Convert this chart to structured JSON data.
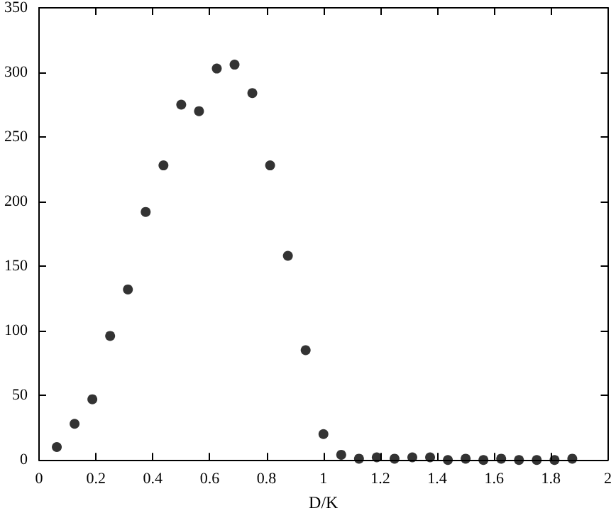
{
  "chart_data": {
    "type": "scatter",
    "xlabel": "D/K",
    "color": "#000000",
    "marker": "circle",
    "grid": false,
    "x": [
      0.0625,
      0.125,
      0.1875,
      0.25,
      0.3125,
      0.375,
      0.4375,
      0.5,
      0.5625,
      0.625,
      0.6875,
      0.75,
      0.8125,
      0.875,
      0.9375,
      1.0,
      1.0625,
      1.125,
      1.1875,
      1.25,
      1.3125,
      1.375,
      1.4375,
      1.5,
      1.5625,
      1.625,
      1.6875,
      1.75,
      1.8125,
      1.875
    ],
    "values": [
      10,
      28,
      47,
      96,
      132,
      192,
      228,
      275,
      270,
      303,
      306,
      284,
      228,
      158,
      85,
      20,
      4,
      1,
      2,
      1,
      2,
      2,
      0,
      1,
      0,
      1,
      0,
      0,
      0,
      1
    ],
    "xlim": [
      0,
      2
    ],
    "xticks": [
      0,
      0.2,
      0.4,
      0.6,
      0.8,
      1,
      1.2,
      1.4,
      1.6,
      1.8,
      2
    ],
    "ylim": [
      0,
      350
    ],
    "yticks": [
      0,
      50,
      100,
      150,
      200,
      250,
      300,
      350
    ]
  }
}
